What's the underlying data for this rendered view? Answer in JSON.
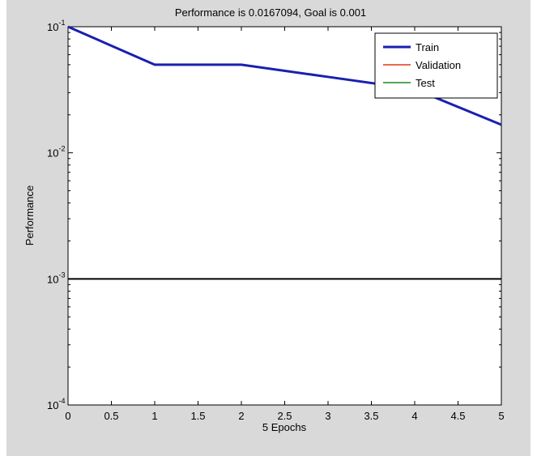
{
  "window": {
    "background": "#d9d9d9"
  },
  "chart_data": {
    "type": "line",
    "title": "Performance is 0.0167094, Goal is 0.001",
    "xlabel": "5 Epochs",
    "ylabel": "Performance",
    "xlim": [
      0,
      5
    ],
    "ylim": [
      0.0001,
      0.1
    ],
    "yscale": "log",
    "x_ticks": [
      "0",
      "0.5",
      "1",
      "1.5",
      "2",
      "2.5",
      "3",
      "3.5",
      "4",
      "4.5",
      "5"
    ],
    "y_ticks": [
      {
        "value": 0.1,
        "base": "10",
        "exp": "-1"
      },
      {
        "value": 0.01,
        "base": "10",
        "exp": "-2"
      },
      {
        "value": 0.001,
        "base": "10",
        "exp": "-3"
      },
      {
        "value": 0.0001,
        "base": "10",
        "exp": "-4"
      }
    ],
    "grid": false,
    "legend_position": "top-right",
    "series": [
      {
        "name": "Train",
        "color": "#1a1fb0",
        "width": "thick",
        "x": [
          0,
          1,
          2,
          3,
          4,
          5
        ],
        "y": [
          0.1,
          0.05,
          0.05,
          0.04,
          0.032,
          0.0167
        ]
      },
      {
        "name": "Validation",
        "color": "#e03a1a",
        "width": "thin",
        "x": [],
        "y": []
      },
      {
        "name": "Test",
        "color": "#1a8a1a",
        "width": "thin",
        "x": [],
        "y": []
      }
    ],
    "reference_lines": [
      {
        "y": 0.001,
        "color": "#000000"
      }
    ]
  }
}
